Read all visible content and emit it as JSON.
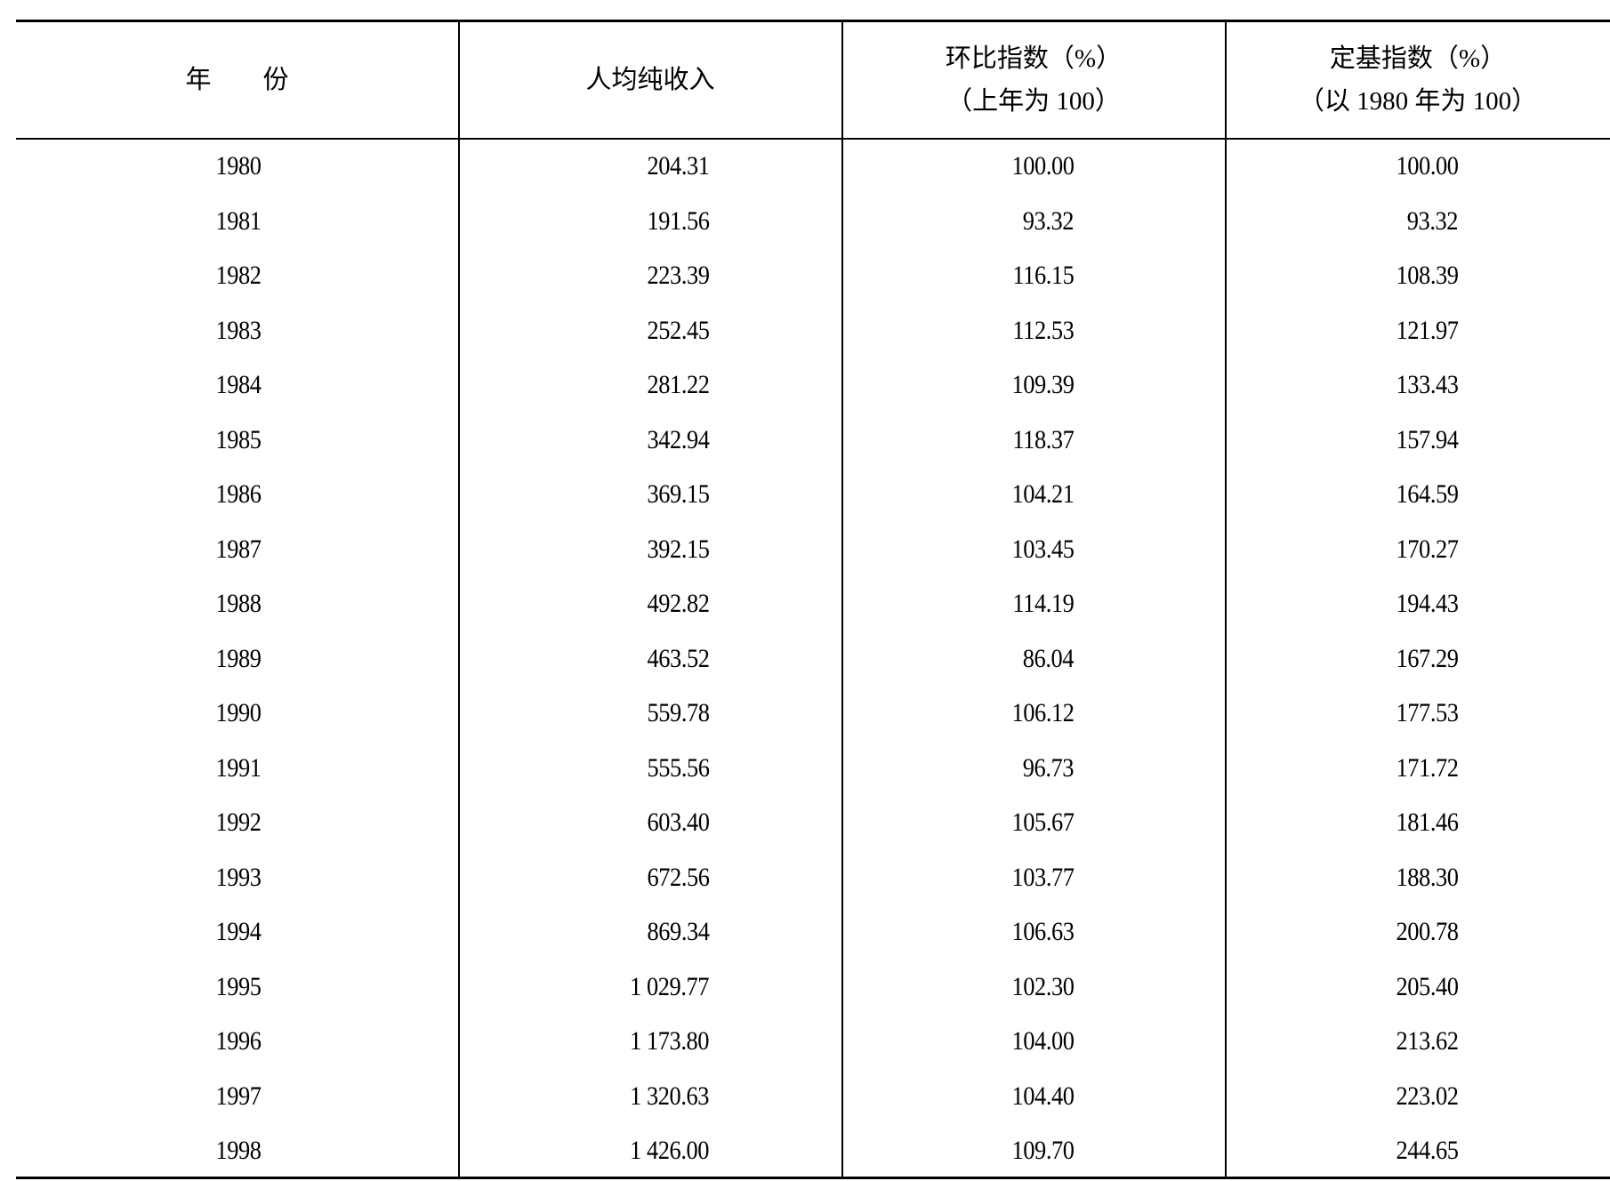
{
  "table": {
    "headers": [
      {
        "line1": "年　　份",
        "line2": ""
      },
      {
        "line1": "人均纯收入",
        "line2": ""
      },
      {
        "line1": "环比指数（%）",
        "line2": "（上年为 100）"
      },
      {
        "line1": "定基指数（%）",
        "line2": "（以 1980 年为 100）"
      }
    ],
    "rows": [
      [
        "1980",
        "204.31",
        "100.00",
        "100.00"
      ],
      [
        "1981",
        "191.56",
        "93.32",
        "93.32"
      ],
      [
        "1982",
        "223.39",
        "116.15",
        "108.39"
      ],
      [
        "1983",
        "252.45",
        "112.53",
        "121.97"
      ],
      [
        "1984",
        "281.22",
        "109.39",
        "133.43"
      ],
      [
        "1985",
        "342.94",
        "118.37",
        "157.94"
      ],
      [
        "1986",
        "369.15",
        "104.21",
        "164.59"
      ],
      [
        "1987",
        "392.15",
        "103.45",
        "170.27"
      ],
      [
        "1988",
        "492.82",
        "114.19",
        "194.43"
      ],
      [
        "1989",
        "463.52",
        "86.04",
        "167.29"
      ],
      [
        "1990",
        "559.78",
        "106.12",
        "177.53"
      ],
      [
        "1991",
        "555.56",
        "96.73",
        "171.72"
      ],
      [
        "1992",
        "603.40",
        "105.67",
        "181.46"
      ],
      [
        "1993",
        "672.56",
        "103.77",
        "188.30"
      ],
      [
        "1994",
        "869.34",
        "106.63",
        "200.78"
      ],
      [
        "1995",
        "1 029.77",
        "102.30",
        "205.40"
      ],
      [
        "1996",
        "1 173.80",
        "104.00",
        "213.62"
      ],
      [
        "1997",
        "1 320.63",
        "104.40",
        "223.02"
      ],
      [
        "1998",
        "1 426.00",
        "109.70",
        "244.65"
      ]
    ]
  }
}
